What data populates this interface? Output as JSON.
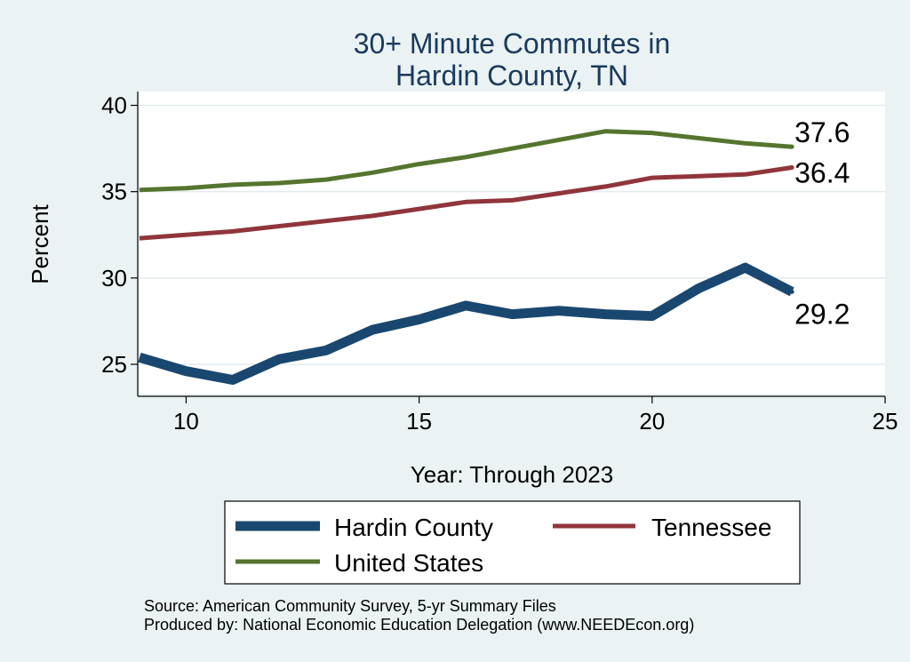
{
  "chart_data": {
    "type": "line",
    "title_lines": [
      "30+ Minute Commutes in",
      "Hardin County, TN"
    ],
    "xlabel": "Year: Through 2023",
    "ylabel": "Percent",
    "xlim": [
      9,
      25
    ],
    "ylim": [
      23.3,
      40.8
    ],
    "xticks": [
      10,
      15,
      20,
      25
    ],
    "yticks": [
      25,
      30,
      35,
      40
    ],
    "grid": true,
    "legend_position": "bottom",
    "series": [
      {
        "key": "hardin",
        "name": "Hardin County",
        "color": "#1a476f",
        "weight": "heavy",
        "x": [
          9,
          10,
          11,
          12,
          13,
          14,
          15,
          16,
          17,
          18,
          19,
          20,
          21,
          22,
          23
        ],
        "values": [
          25.4,
          24.6,
          24.1,
          25.3,
          25.8,
          27.0,
          27.6,
          28.4,
          27.9,
          28.1,
          27.9,
          27.8,
          29.4,
          30.6,
          29.2
        ],
        "end_label": "29.2"
      },
      {
        "key": "tennessee",
        "name": "Tennessee",
        "color": "#90353b",
        "weight": "medium",
        "x": [
          9,
          10,
          11,
          12,
          13,
          14,
          15,
          16,
          17,
          18,
          19,
          20,
          21,
          22,
          23
        ],
        "values": [
          32.3,
          32.5,
          32.7,
          33.0,
          33.3,
          33.6,
          34.0,
          34.4,
          34.5,
          34.9,
          35.3,
          35.8,
          35.9,
          36.0,
          36.4
        ],
        "end_label": "36.4"
      },
      {
        "key": "us",
        "name": "United States",
        "color": "#55752f",
        "weight": "medium",
        "x": [
          9,
          10,
          11,
          12,
          13,
          14,
          15,
          16,
          17,
          18,
          19,
          20,
          21,
          22,
          23
        ],
        "values": [
          35.1,
          35.2,
          35.4,
          35.5,
          35.7,
          36.1,
          36.6,
          37.0,
          37.5,
          38.0,
          38.5,
          38.4,
          38.1,
          37.8,
          37.6
        ],
        "end_label": "37.6"
      }
    ],
    "notes": [
      "Source: American Community Survey, 5-yr Summary Files",
      "Produced by: National Economic Education Delegation (www.NEEDEcon.org)"
    ]
  }
}
